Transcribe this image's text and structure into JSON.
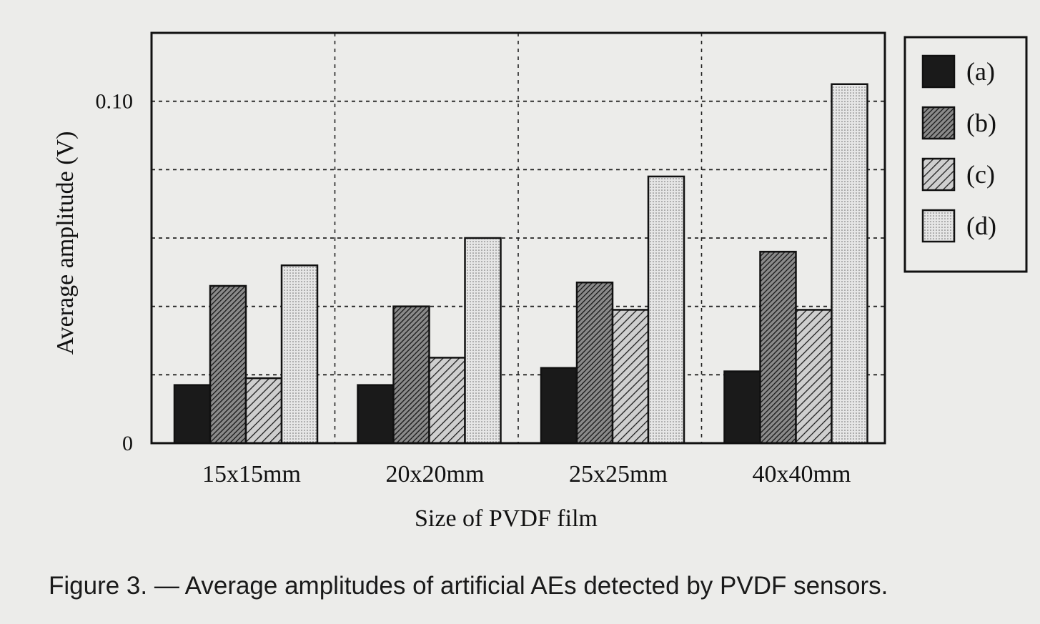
{
  "caption": "Figure 3. — Average amplitudes of artificial AEs detected by PVDF sensors.",
  "chart_data": {
    "type": "bar",
    "title": "",
    "xlabel": "Size of PVDF film",
    "ylabel": "Average amplitude (V)",
    "ylim": [
      0,
      0.12
    ],
    "y_tick_labels": [
      {
        "value": 0,
        "label": "0"
      },
      {
        "value": 0.1,
        "label": "0.10"
      }
    ],
    "y_gridlines": [
      0.02,
      0.04,
      0.06,
      0.08,
      0.1
    ],
    "grid": true,
    "legend_placement": "right",
    "categories": [
      "15x15mm",
      "20x20mm",
      "25x25mm",
      "40x40mm"
    ],
    "series": [
      {
        "name": "(a)",
        "pattern": "solid-dark",
        "values": [
          0.017,
          0.017,
          0.022,
          0.021
        ]
      },
      {
        "name": "(b)",
        "pattern": "dense-hatch",
        "values": [
          0.046,
          0.04,
          0.047,
          0.056
        ]
      },
      {
        "name": "(c)",
        "pattern": "diagonal-hatch",
        "values": [
          0.019,
          0.025,
          0.039,
          0.039
        ]
      },
      {
        "name": "(d)",
        "pattern": "dotted-light",
        "values": [
          0.052,
          0.06,
          0.078,
          0.105
        ]
      }
    ]
  }
}
